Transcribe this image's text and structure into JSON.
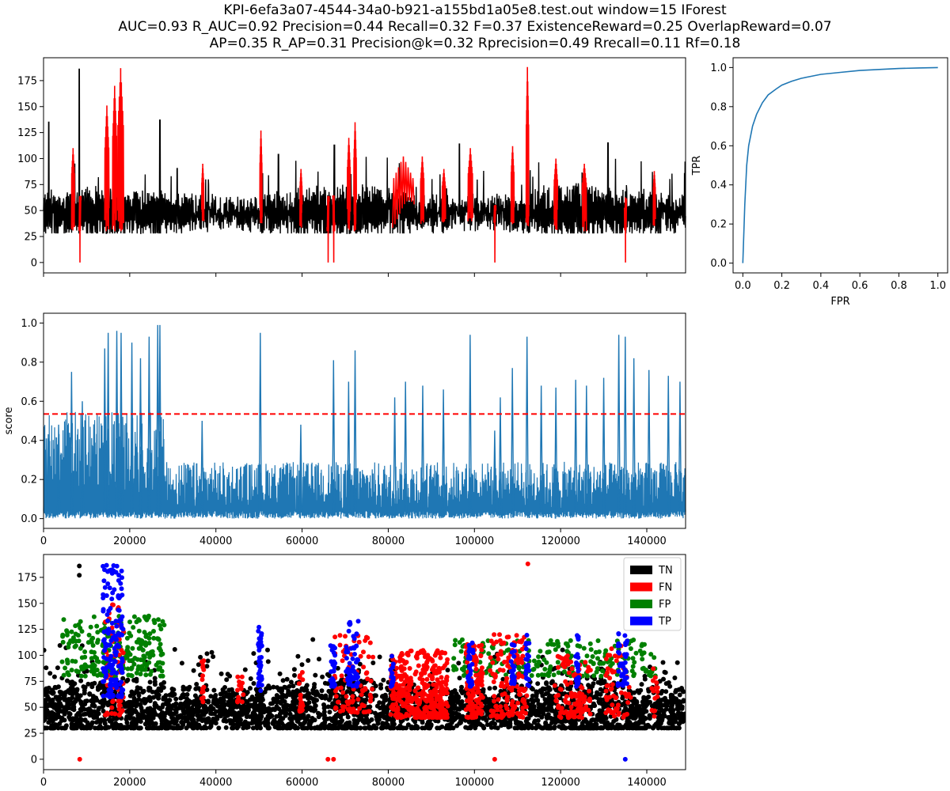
{
  "title": {
    "line1": "KPI-6efa3a07-4544-34a0-b921-a155bd1a05e8.test.out     window=15   IForest",
    "line2": "AUC=0.93     R_AUC=0.92     Precision=0.44     Recall=0.32     F=0.37     ExistenceReward=0.25   OverlapReward=0.07",
    "line3": "AP=0.35     R_AP=0.31     Precision@k=0.32     Rprecision=0.49     Rrecall=0.11     Rf=0.18"
  },
  "colors": {
    "series_blue": "#1f77b4",
    "normal": "#000000",
    "anomaly": "#ff0000",
    "threshold": "#ff0000",
    "TN": "#000000",
    "FN": "#ff0000",
    "FP": "#008000",
    "TP": "#0000ff"
  },
  "chart_data": [
    {
      "id": "signal",
      "type": "line",
      "description_series": [
        "normal",
        "anomaly"
      ],
      "xlabel": "",
      "ylabel": "",
      "xlim": [
        0,
        149000
      ],
      "ylim": [
        -10,
        197
      ],
      "yticks": [
        0,
        25,
        50,
        75,
        100,
        125,
        150,
        175
      ],
      "grid": false,
      "base_level": 47,
      "amplitude": 18,
      "min_value": 30,
      "n_cycles": 520,
      "normal_peaks": [
        {
          "x": 8300,
          "y": 186
        },
        {
          "x": 1200,
          "y": 135
        },
        {
          "x": 27000,
          "y": 137
        },
        {
          "x": 54500,
          "y": 104
        },
        {
          "x": 67500,
          "y": 113
        },
        {
          "x": 96500,
          "y": 114
        },
        {
          "x": 131000,
          "y": 115
        }
      ],
      "anomaly_segments": [
        {
          "x0": 6500,
          "x1": 7200,
          "peak": 110
        },
        {
          "x0": 8200,
          "x1": 8700,
          "peak": 0
        },
        {
          "x0": 14200,
          "x1": 15200,
          "peak": 151
        },
        {
          "x0": 16000,
          "x1": 17000,
          "peak": 170
        },
        {
          "x0": 17200,
          "x1": 18600,
          "peak": 187
        },
        {
          "x0": 36700,
          "x1": 37200,
          "peak": 95
        },
        {
          "x0": 50200,
          "x1": 50700,
          "peak": 127
        },
        {
          "x0": 59500,
          "x1": 60000,
          "peak": 90
        },
        {
          "x0": 65800,
          "x1": 66300,
          "peak": 0
        },
        {
          "x0": 67100,
          "x1": 67600,
          "peak": 0
        },
        {
          "x0": 70500,
          "x1": 71200,
          "peak": 120
        },
        {
          "x0": 72000,
          "x1": 72600,
          "peak": 135
        },
        {
          "x0": 81000,
          "x1": 86000,
          "peak": 102
        },
        {
          "x0": 87500,
          "x1": 88300,
          "peak": 102
        },
        {
          "x0": 92500,
          "x1": 93300,
          "peak": 90
        },
        {
          "x0": 98500,
          "x1": 99600,
          "peak": 110
        },
        {
          "x0": 104500,
          "x1": 105000,
          "peak": 0
        },
        {
          "x0": 108500,
          "x1": 109200,
          "peak": 112
        },
        {
          "x0": 112000,
          "x1": 112600,
          "peak": 188
        },
        {
          "x0": 118500,
          "x1": 119300,
          "peak": 100
        },
        {
          "x0": 125000,
          "x1": 126000,
          "peak": 95
        },
        {
          "x0": 134800,
          "x1": 135300,
          "peak": 0
        },
        {
          "x0": 141500,
          "x1": 142000,
          "peak": 88
        }
      ]
    },
    {
      "id": "roc",
      "type": "line",
      "xlabel": "FPR",
      "ylabel": "TPR",
      "xlim": [
        -0.05,
        1.05
      ],
      "ylim": [
        -0.05,
        1.05
      ],
      "xticks": [
        0.0,
        0.2,
        0.4,
        0.6,
        0.8,
        1.0
      ],
      "yticks": [
        0.0,
        0.2,
        0.4,
        0.6,
        0.8,
        1.0
      ],
      "x": [
        0.0,
        0.01,
        0.02,
        0.03,
        0.05,
        0.07,
        0.1,
        0.13,
        0.17,
        0.2,
        0.25,
        0.3,
        0.35,
        0.4,
        0.5,
        0.6,
        0.7,
        0.8,
        0.9,
        1.0
      ],
      "y": [
        0.0,
        0.3,
        0.5,
        0.6,
        0.7,
        0.76,
        0.82,
        0.86,
        0.89,
        0.91,
        0.93,
        0.945,
        0.955,
        0.965,
        0.975,
        0.985,
        0.99,
        0.995,
        0.998,
        1.0
      ]
    },
    {
      "id": "score",
      "type": "line",
      "xlabel": "",
      "ylabel": "score",
      "xlim": [
        0,
        149000
      ],
      "ylim": [
        -0.05,
        1.05
      ],
      "xticks": [
        0,
        20000,
        40000,
        60000,
        80000,
        100000,
        120000,
        140000
      ],
      "yticks": [
        0.0,
        0.2,
        0.4,
        0.6,
        0.8,
        1.0
      ],
      "threshold": 0.535,
      "baseline_max": 0.25,
      "spikes": [
        {
          "x": 1000,
          "y": 0.41
        },
        {
          "x": 3500,
          "y": 0.48
        },
        {
          "x": 6500,
          "y": 0.75
        },
        {
          "x": 9000,
          "y": 0.6
        },
        {
          "x": 14200,
          "y": 0.87
        },
        {
          "x": 15000,
          "y": 0.95
        },
        {
          "x": 17000,
          "y": 0.96
        },
        {
          "x": 18000,
          "y": 0.95
        },
        {
          "x": 20500,
          "y": 0.9
        },
        {
          "x": 22500,
          "y": 0.82
        },
        {
          "x": 24500,
          "y": 0.93
        },
        {
          "x": 26500,
          "y": 0.99
        },
        {
          "x": 27000,
          "y": 0.99
        },
        {
          "x": 36800,
          "y": 0.5
        },
        {
          "x": 50300,
          "y": 0.95
        },
        {
          "x": 59700,
          "y": 0.48
        },
        {
          "x": 67300,
          "y": 0.81
        },
        {
          "x": 70800,
          "y": 0.7
        },
        {
          "x": 72300,
          "y": 0.86
        },
        {
          "x": 81500,
          "y": 0.62
        },
        {
          "x": 84000,
          "y": 0.7
        },
        {
          "x": 88000,
          "y": 0.68
        },
        {
          "x": 92800,
          "y": 0.66
        },
        {
          "x": 99000,
          "y": 0.94
        },
        {
          "x": 104700,
          "y": 0.45
        },
        {
          "x": 106000,
          "y": 0.62
        },
        {
          "x": 108800,
          "y": 0.77
        },
        {
          "x": 112200,
          "y": 0.93
        },
        {
          "x": 115500,
          "y": 0.68
        },
        {
          "x": 118900,
          "y": 0.67
        },
        {
          "x": 123500,
          "y": 0.71
        },
        {
          "x": 126000,
          "y": 0.68
        },
        {
          "x": 130000,
          "y": 0.72
        },
        {
          "x": 133500,
          "y": 0.94
        },
        {
          "x": 135000,
          "y": 0.93
        },
        {
          "x": 137000,
          "y": 0.82
        },
        {
          "x": 140500,
          "y": 0.76
        },
        {
          "x": 145000,
          "y": 0.73
        },
        {
          "x": 147700,
          "y": 0.7
        }
      ]
    },
    {
      "id": "classification",
      "type": "scatter",
      "xlabel": "",
      "ylabel": "",
      "xlim": [
        0,
        149000
      ],
      "ylim": [
        -10,
        197
      ],
      "xticks": [
        0,
        20000,
        40000,
        60000,
        80000,
        100000,
        120000,
        140000
      ],
      "yticks": [
        0,
        25,
        50,
        75,
        100,
        125,
        150,
        175
      ],
      "legend": {
        "placement": "top-right",
        "entries": [
          "TN",
          "FN",
          "FP",
          "TP"
        ]
      },
      "clusters": [
        {
          "label": "FP",
          "x0": 4000,
          "x1": 28000,
          "ymin": 80,
          "ymax": 138,
          "count": 260
        },
        {
          "label": "TP",
          "x0": 13800,
          "x1": 18500,
          "ymin": 60,
          "ymax": 187,
          "count": 160
        },
        {
          "label": "TP",
          "x0": 49800,
          "x1": 50700,
          "ymin": 65,
          "ymax": 128,
          "count": 40
        },
        {
          "label": "TP",
          "x0": 66500,
          "x1": 67700,
          "ymin": 70,
          "ymax": 113,
          "count": 30
        },
        {
          "label": "TP",
          "x0": 70200,
          "x1": 73200,
          "ymin": 70,
          "ymax": 135,
          "count": 60
        },
        {
          "label": "TP",
          "x0": 80500,
          "x1": 81200,
          "ymin": 70,
          "ymax": 100,
          "count": 15
        },
        {
          "label": "TP",
          "x0": 98500,
          "x1": 99700,
          "ymin": 70,
          "ymax": 112,
          "count": 30
        },
        {
          "label": "TP",
          "x0": 108500,
          "x1": 109300,
          "ymin": 70,
          "ymax": 112,
          "count": 25
        },
        {
          "label": "TP",
          "x0": 111900,
          "x1": 112700,
          "ymin": 70,
          "ymax": 121,
          "count": 25
        },
        {
          "label": "TP",
          "x0": 123500,
          "x1": 124200,
          "ymin": 70,
          "ymax": 120,
          "count": 20
        },
        {
          "label": "TP",
          "x0": 133300,
          "x1": 135500,
          "ymin": 70,
          "ymax": 123,
          "count": 40
        },
        {
          "label": "FP",
          "x0": 95000,
          "x1": 142000,
          "ymin": 80,
          "ymax": 115,
          "count": 220
        },
        {
          "label": "FN",
          "x0": 14200,
          "x1": 18600,
          "ymin": 42,
          "ymax": 150,
          "count": 60
        },
        {
          "label": "FN",
          "x0": 36700,
          "x1": 37200,
          "ymin": 55,
          "ymax": 95,
          "count": 15
        },
        {
          "label": "FN",
          "x0": 45000,
          "x1": 46500,
          "ymin": 55,
          "ymax": 80,
          "count": 15
        },
        {
          "label": "FN",
          "x0": 59300,
          "x1": 60200,
          "ymin": 45,
          "ymax": 90,
          "count": 20
        },
        {
          "label": "FN",
          "x0": 67500,
          "x1": 76500,
          "ymin": 45,
          "ymax": 120,
          "count": 90
        },
        {
          "label": "FN",
          "x0": 80500,
          "x1": 93800,
          "ymin": 40,
          "ymax": 105,
          "count": 360
        },
        {
          "label": "FN",
          "x0": 98000,
          "x1": 102000,
          "ymin": 40,
          "ymax": 112,
          "count": 120
        },
        {
          "label": "FN",
          "x0": 103500,
          "x1": 112500,
          "ymin": 40,
          "ymax": 120,
          "count": 140
        },
        {
          "label": "FN",
          "x0": 118300,
          "x1": 127000,
          "ymin": 40,
          "ymax": 100,
          "count": 110
        },
        {
          "label": "FN",
          "x0": 130500,
          "x1": 136500,
          "ymin": 40,
          "ymax": 110,
          "count": 60
        },
        {
          "label": "FN",
          "x0": 141000,
          "x1": 142500,
          "ymin": 40,
          "ymax": 90,
          "count": 15
        }
      ],
      "single_points": [
        {
          "label": "FN",
          "x": 8400,
          "y": 0
        },
        {
          "label": "FN",
          "x": 66000,
          "y": 0
        },
        {
          "label": "FN",
          "x": 67300,
          "y": 0
        },
        {
          "label": "FN",
          "x": 104700,
          "y": 0
        },
        {
          "label": "TP",
          "x": 135000,
          "y": 0
        },
        {
          "label": "FN",
          "x": 112400,
          "y": 188
        },
        {
          "label": "TN",
          "x": 8300,
          "y": 186
        },
        {
          "label": "TN",
          "x": 8300,
          "y": 177
        }
      ]
    }
  ]
}
